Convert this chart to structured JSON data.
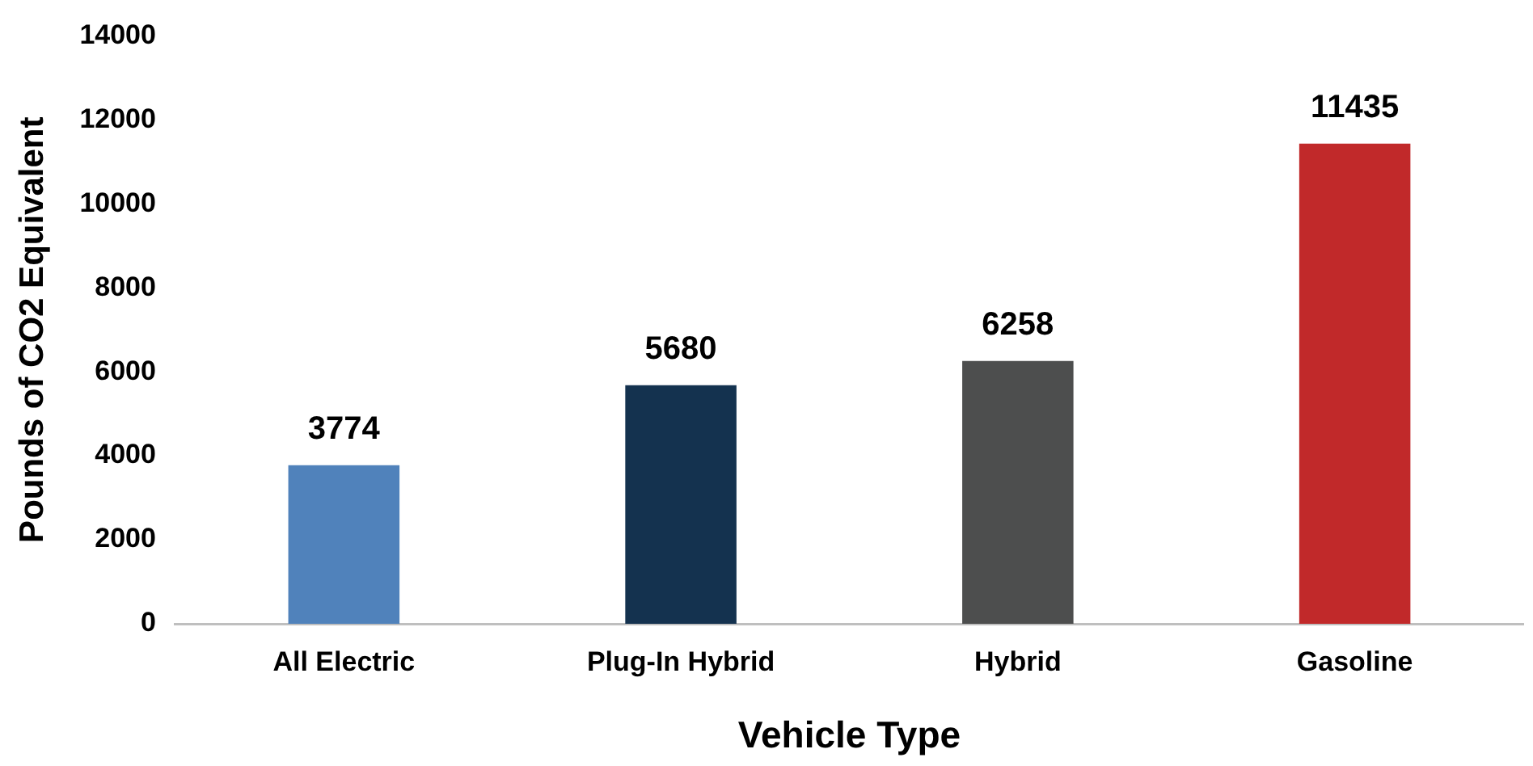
{
  "chart_data": {
    "type": "bar",
    "xlabel": "Vehicle Type",
    "ylabel": "Pounds of CO2 Equivalent",
    "categories": [
      "All Electric",
      "Plug-In Hybrid",
      "Hybrid",
      "Gasoline"
    ],
    "values": [
      3774,
      5680,
      6258,
      11435
    ],
    "colors": [
      "#5082bb",
      "#14324f",
      "#4d4e4e",
      "#c1292a"
    ],
    "ylim": [
      0,
      14000
    ],
    "yticks": [
      0,
      2000,
      4000,
      6000,
      8000,
      10000,
      12000,
      14000
    ],
    "grid": false,
    "data_labels": true
  }
}
